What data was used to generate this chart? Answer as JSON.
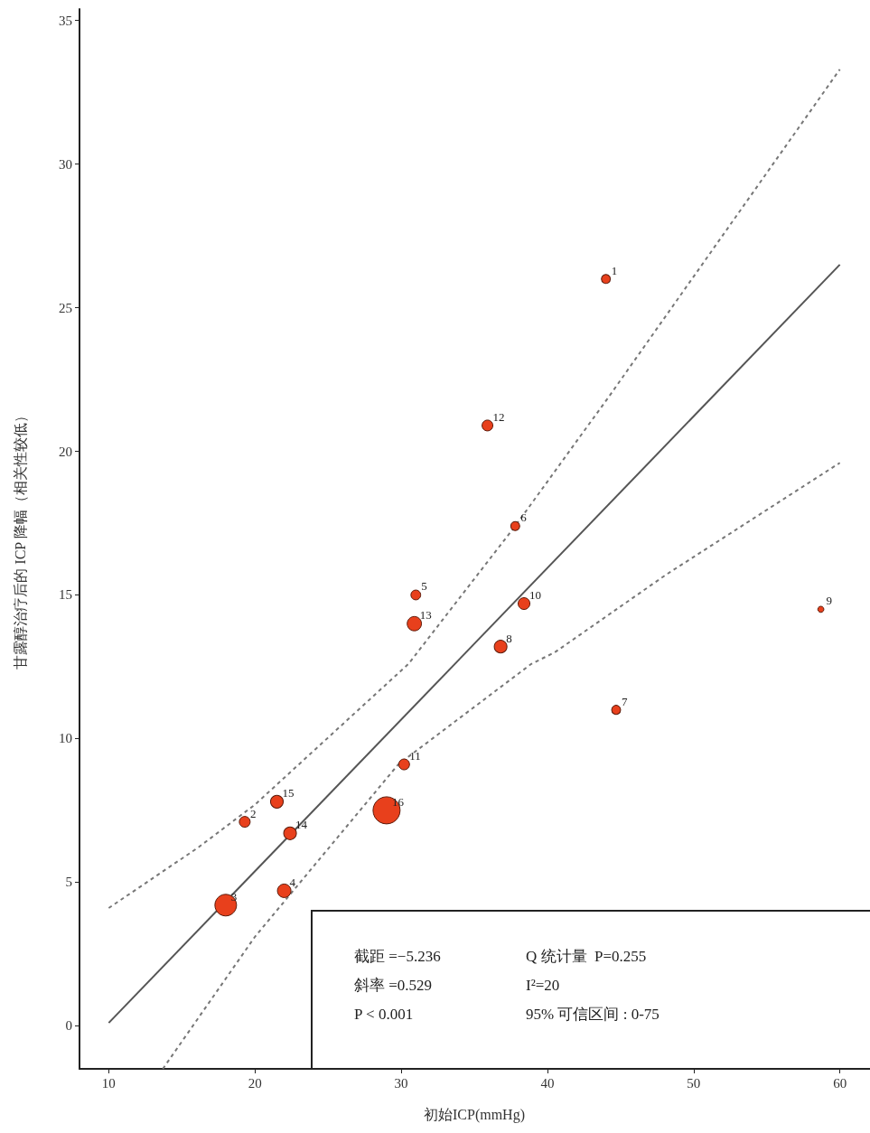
{
  "chart_data": {
    "type": "bubble",
    "xlabel": "初始ICP(mmHg)",
    "ylabel": "甘露醇治疗后的 ICP 降幅（相关性较低）",
    "xlim": [
      8,
      62
    ],
    "xticks": [
      10,
      20,
      30,
      40,
      50,
      60
    ],
    "ylim": [
      -1.5,
      35.4
    ],
    "yticks": [
      0,
      5,
      10,
      15,
      20,
      25,
      30,
      35
    ],
    "grid": false,
    "series": [
      {
        "type": "bubble",
        "color": "#e8401c",
        "marker": "circle",
        "x": [
          44.0,
          19.3,
          18.0,
          22.0,
          31.0,
          37.8,
          44.7,
          36.8,
          58.7,
          38.4,
          30.2,
          35.9,
          30.9,
          22.4,
          21.5,
          29.0
        ],
        "values": [
          26.0,
          7.1,
          4.2,
          4.7,
          15.0,
          17.4,
          11.0,
          13.2,
          14.5,
          14.7,
          9.1,
          20.9,
          14.0,
          6.7,
          7.8,
          7.5
        ],
        "sizes": [
          0.11,
          0.16,
          0.64,
          0.25,
          0.13,
          0.11,
          0.11,
          0.22,
          0.05,
          0.19,
          0.16,
          0.16,
          0.28,
          0.22,
          0.22,
          1
        ]
      },
      {
        "type": "line",
        "color": "#555555",
        "line_style": "solid",
        "marker": "none",
        "x": [
          10,
          60
        ],
        "values": [
          0.1,
          26.5
        ]
      },
      {
        "type": "line",
        "color": "#777777",
        "line_style": "dashed",
        "marker": "none",
        "x": [
          10,
          16.1,
          20,
          30.5,
          37.8,
          44.2,
          60
        ],
        "values": [
          4.1,
          6.2,
          7.7,
          12.6,
          17.4,
          21.9,
          33.3
        ]
      },
      {
        "type": "line",
        "color": "#777777",
        "line_style": "dashed",
        "marker": "none",
        "x": [
          13.7,
          20,
          29.8,
          38.9,
          40.5,
          48.1,
          60
        ],
        "values": [
          -1.5,
          3.1,
          9.1,
          12.6,
          13.0,
          15.7,
          19.6
        ]
      }
    ],
    "annotations": [
      {
        "text": "1",
        "x": 44.0,
        "y": 26.0
      },
      {
        "text": "2",
        "x": 19.3,
        "y": 7.1
      },
      {
        "text": "3",
        "x": 18.0,
        "y": 4.2
      },
      {
        "text": "4",
        "x": 22.0,
        "y": 4.7
      },
      {
        "text": "5",
        "x": 31.0,
        "y": 15.0
      },
      {
        "text": "6",
        "x": 37.8,
        "y": 17.4
      },
      {
        "text": "7",
        "x": 44.7,
        "y": 11.0
      },
      {
        "text": "8",
        "x": 36.8,
        "y": 13.2
      },
      {
        "text": "9",
        "x": 58.7,
        "y": 14.5
      },
      {
        "text": "10",
        "x": 38.4,
        "y": 14.7
      },
      {
        "text": "11",
        "x": 30.2,
        "y": 9.1
      },
      {
        "text": "12",
        "x": 35.9,
        "y": 20.9
      },
      {
        "text": "13",
        "x": 30.9,
        "y": 14.0
      },
      {
        "text": "14",
        "x": 22.4,
        "y": 6.7
      },
      {
        "text": "15",
        "x": 21.5,
        "y": 7.8
      },
      {
        "text": "16",
        "x": 29.0,
        "y": 7.5
      },
      "截距 =−5.236",
      "斜率 =0.529",
      "P < 0.001",
      "Q 统计量  P=0.255",
      "I²=20",
      "95% 可信区间 : 0-75"
    ]
  }
}
